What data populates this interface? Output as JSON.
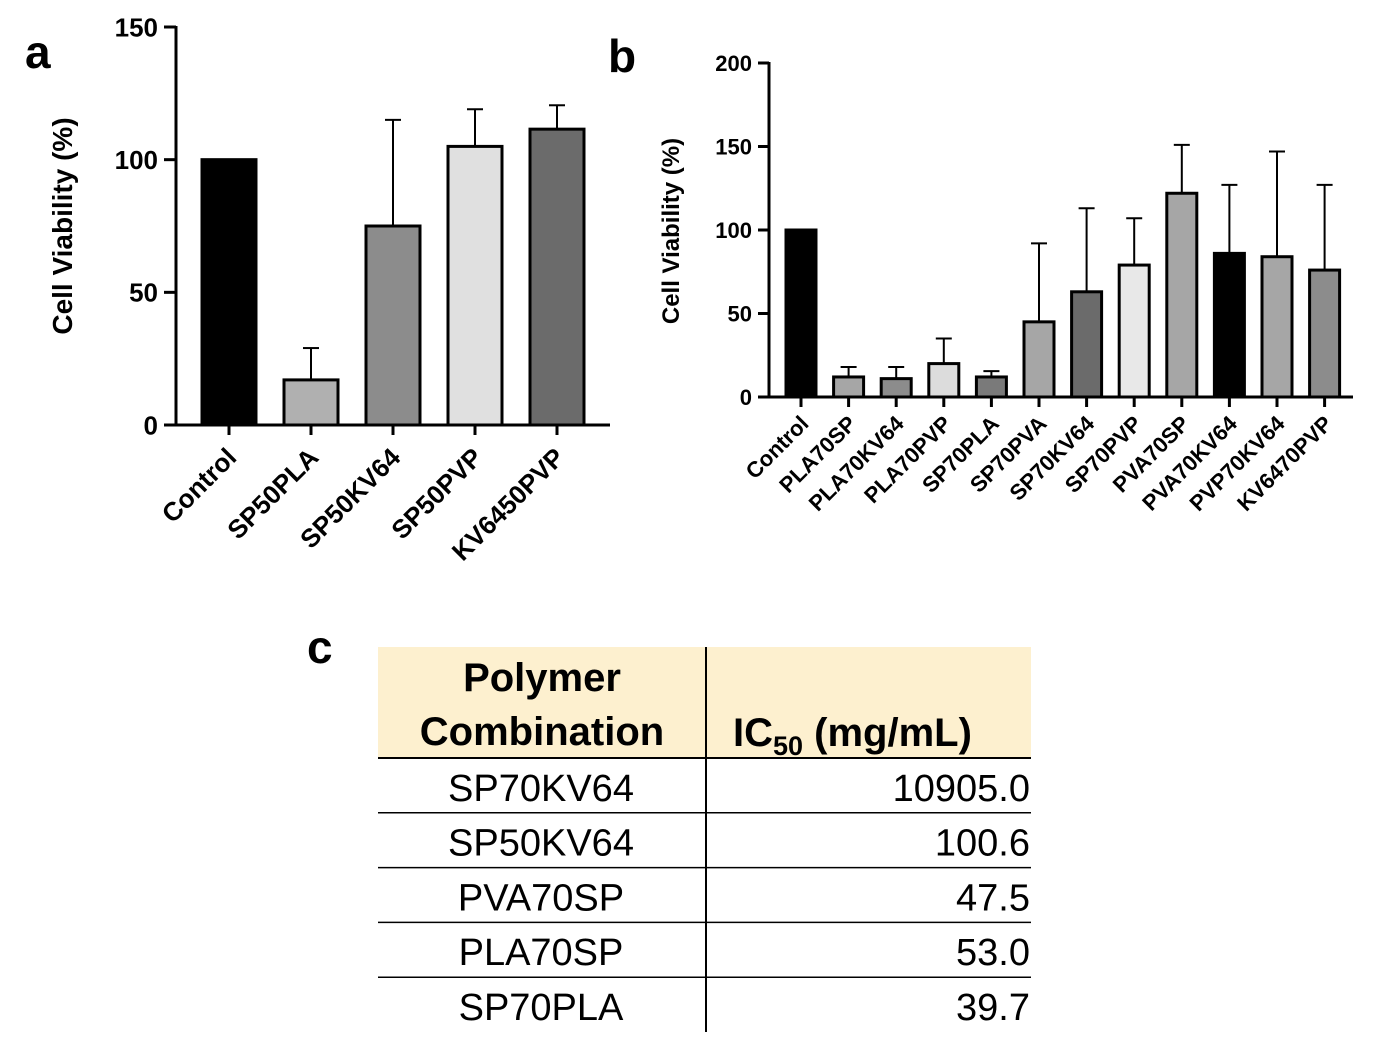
{
  "chart_data": [
    {
      "panel": "a",
      "type": "bar",
      "ylabel": "Cell Viability (%)",
      "ylim": [
        0,
        150
      ],
      "yticks": [
        0,
        50,
        100,
        150
      ],
      "categories": [
        "Control",
        "SP50PLA",
        "SP50KV64",
        "SP50PVP",
        "KV6450PVP"
      ],
      "values": [
        100,
        17,
        75,
        105,
        111.5
      ],
      "errors": [
        0,
        12,
        40,
        14,
        9
      ],
      "colors": [
        "#000000",
        "#b0b0b0",
        "#8c8c8c",
        "#e0e0e0",
        "#6b6b6b"
      ]
    },
    {
      "panel": "b",
      "type": "bar",
      "ylabel": "Cell Viability (%)",
      "ylim": [
        0,
        200
      ],
      "yticks": [
        0,
        50,
        100,
        150,
        200
      ],
      "categories": [
        "Control",
        "PLA70SP",
        "PLA70KV64",
        "PLA70PVP",
        "SP70PLA",
        "SP70PVA",
        "SP70KV64",
        "SP70PVP",
        "PVA70SP",
        "PVA70KV64",
        "PVP70KV64",
        "KV6470PVP"
      ],
      "values": [
        100,
        12,
        11,
        20,
        12,
        45,
        63,
        79,
        122,
        86,
        84,
        76
      ],
      "errors": [
        0,
        6,
        7,
        15,
        3.5,
        47,
        50,
        28,
        29,
        41,
        63,
        51
      ],
      "colors": [
        "#000000",
        "#a6a6a6",
        "#8c8c8c",
        "#dcdcdc",
        "#7a7a7a",
        "#a6a6a6",
        "#6b6b6b",
        "#e8e8e8",
        "#a6a6a6",
        "#000000",
        "#a6a6a6",
        "#8c8c8c"
      ]
    }
  ],
  "panel_labels": {
    "a": "a",
    "b": "b",
    "c": "c"
  },
  "table": {
    "header_fill": "#fdf0cf",
    "header": {
      "col1_line1": "Polymer",
      "col1_line2": "Combination",
      "col2_main": "IC",
      "col2_sub": "50",
      "col2_unit": " (mg/mL)"
    },
    "rows": [
      {
        "name": "SP70KV64",
        "value": "10905.0"
      },
      {
        "name": "SP50KV64",
        "value": "100.6"
      },
      {
        "name": "PVA70SP",
        "value": "47.5"
      },
      {
        "name": "PLA70SP",
        "value": "53.0"
      },
      {
        "name": "SP70PLA",
        "value": "39.7"
      }
    ]
  }
}
